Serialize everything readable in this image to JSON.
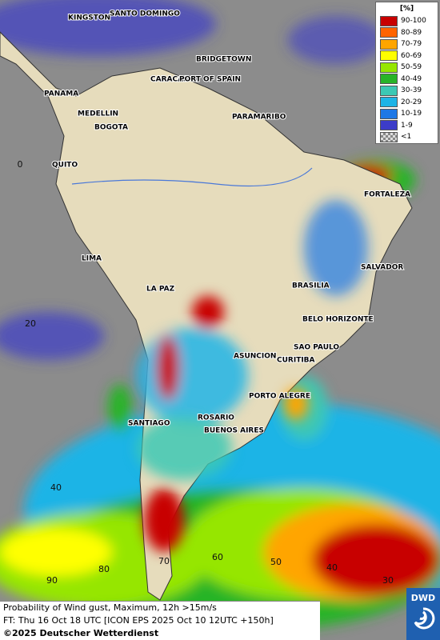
{
  "legend": {
    "title": "[%]",
    "entries": [
      {
        "label": "90-100",
        "color": "#c80000"
      },
      {
        "label": "80-89",
        "color": "#ff6400"
      },
      {
        "label": "70-79",
        "color": "#ffa500"
      },
      {
        "label": "60-69",
        "color": "#ffff00"
      },
      {
        "label": "50-59",
        "color": "#96e600"
      },
      {
        "label": "40-49",
        "color": "#28b428"
      },
      {
        "label": "30-39",
        "color": "#3cc8b4"
      },
      {
        "label": "20-29",
        "color": "#1eb4e6"
      },
      {
        "label": "10-19",
        "color": "#1e78e6"
      },
      {
        "label": "1-9",
        "color": "#3c3cc8"
      },
      {
        "label": "<1",
        "color": "url"
      }
    ]
  },
  "cities": [
    "KINGSTON",
    "SANTO DOMINGO",
    "BRIDGETOWN",
    "PANAMA",
    "CARACAS",
    "PORT OF SPAIN",
    "MEDELLIN",
    "BOGOTA",
    "PARAMARIBO",
    "QUITO",
    "FORTALEZA",
    "LIMA",
    "SALVADOR",
    "LA PAZ",
    "BRASILIA",
    "BELO HORIZONTE",
    "ASUNCION",
    "SAO PAULO",
    "CURITIBA",
    "PORTO ALEGRE",
    "SANTIAGO",
    "ROSARIO",
    "BUENOS AIRES"
  ],
  "grid_labels": [
    "0",
    "20",
    "40",
    "90",
    "80",
    "70",
    "60",
    "50",
    "40",
    "30"
  ],
  "footer": [
    "Probability of Wind gust, Maximum, 12h >15m/s",
    "FT: Thu 16 Oct 18 UTC [ICON EPS 2025 Oct 10 12UTC +150h]",
    "©2025 Deutscher Wetterdienst"
  ],
  "logo": "DWD"
}
